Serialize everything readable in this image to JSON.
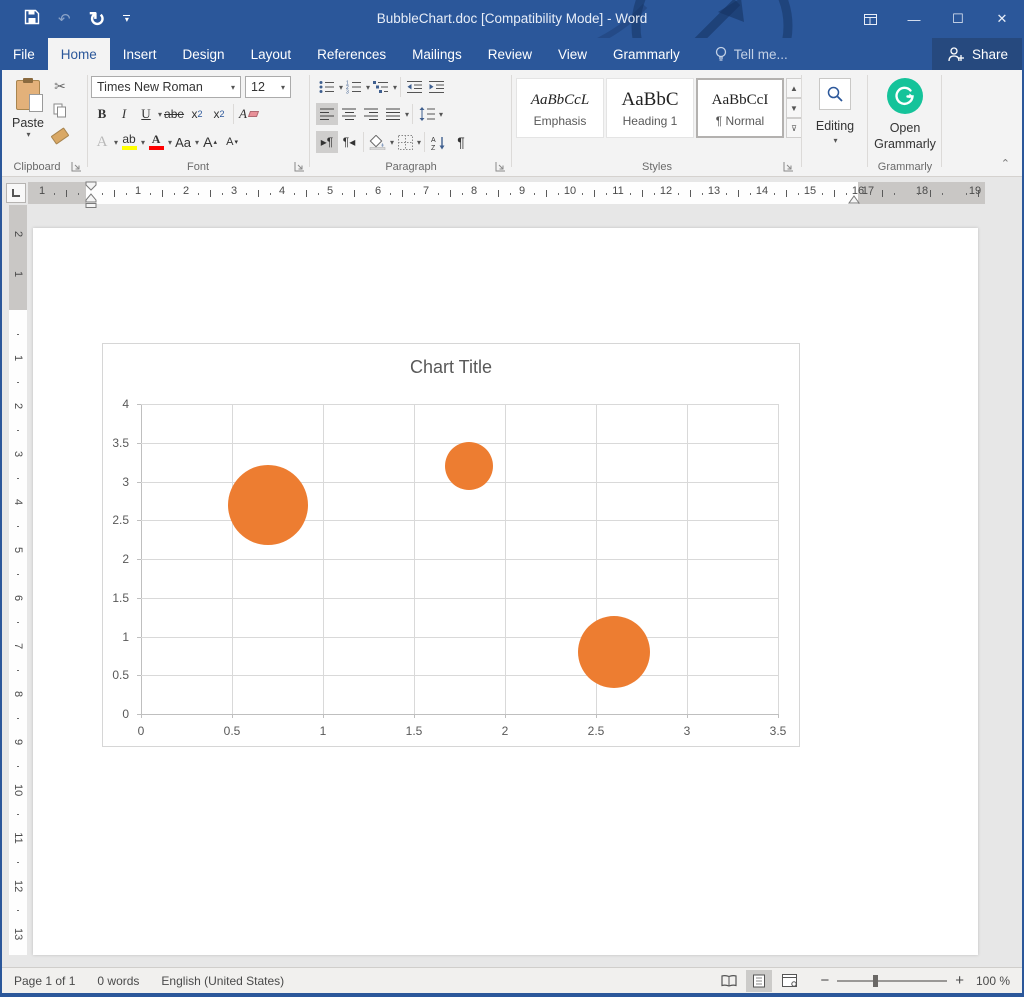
{
  "window": {
    "title": "BubbleChart.doc [Compatibility Mode] - Word"
  },
  "tabs": {
    "items": [
      "File",
      "Home",
      "Insert",
      "Design",
      "Layout",
      "References",
      "Mailings",
      "Review",
      "View",
      "Grammarly"
    ],
    "active": "Home",
    "tell_me": "Tell me...",
    "share": "Share"
  },
  "ribbon": {
    "clipboard": {
      "paste_label": "Paste",
      "group_label": "Clipboard"
    },
    "font": {
      "font_name": "Times New Roman",
      "font_size": "12",
      "group_label": "Font",
      "bold": "B",
      "italic": "I",
      "underline": "U",
      "strikethrough": "abe",
      "subscript_base": "x",
      "superscript_base": "x",
      "text_effects": "A",
      "highlight": "ab",
      "font_color": "A",
      "change_case": "Aa",
      "grow_font": "A",
      "shrink_font": "A"
    },
    "paragraph": {
      "group_label": "Paragraph"
    },
    "styles": {
      "group_label": "Styles",
      "items": [
        {
          "sample": "AaBbCcL",
          "name": "Emphasis",
          "selected": false
        },
        {
          "sample": "AaBbC",
          "name": "Heading 1",
          "selected": false
        },
        {
          "sample": "AaBbCcI",
          "name": "¶ Normal",
          "selected": true
        }
      ]
    },
    "editing": {
      "label": "Editing"
    },
    "grammarly": {
      "button_line1": "Open",
      "button_line2": "Grammarly",
      "group_label": "Grammarly",
      "brand_color": "#15c39a"
    }
  },
  "ruler": {
    "left_margin_numbers": [
      1
    ],
    "h_numbers": [
      1,
      2,
      3,
      4,
      5,
      6,
      7,
      8,
      9,
      10,
      11,
      12,
      13,
      14,
      15,
      16
    ],
    "right_margin_numbers": [
      17,
      18,
      19
    ],
    "v_margin_numbers": [
      2,
      1
    ],
    "v_numbers": [
      1,
      2,
      3,
      4,
      5,
      6,
      7,
      8,
      9,
      10,
      11,
      12,
      13
    ]
  },
  "chart_data": {
    "type": "scatter",
    "subtype": "bubble",
    "title": "Chart Title",
    "points": [
      {
        "x": 0.7,
        "y": 2.7,
        "size": 10
      },
      {
        "x": 1.8,
        "y": 3.2,
        "size": 6
      },
      {
        "x": 2.6,
        "y": 0.8,
        "size": 9
      }
    ],
    "xlim": [
      0,
      3.5
    ],
    "ylim": [
      0,
      4
    ],
    "x_ticks": [
      0,
      0.5,
      1,
      1.5,
      2,
      2.5,
      3,
      3.5
    ],
    "y_ticks": [
      0,
      0.5,
      1,
      1.5,
      2,
      2.5,
      3,
      3.5,
      4
    ],
    "grid": true,
    "legend": false,
    "bubble_color": "#ED7D31",
    "title_color": "#595959"
  },
  "status_bar": {
    "page": "Page 1 of 1",
    "words": "0 words",
    "language": "English (United States)",
    "zoom_level": "100 %"
  }
}
